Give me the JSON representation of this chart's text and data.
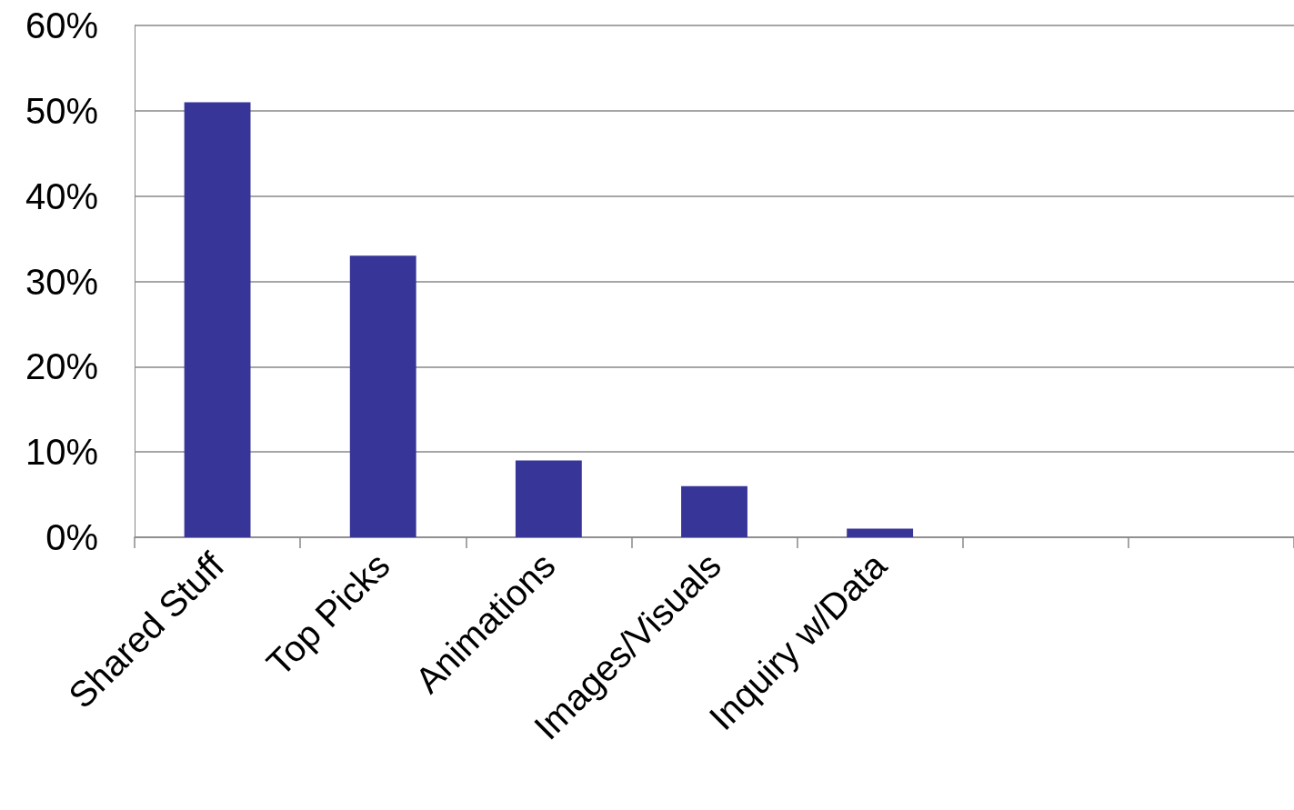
{
  "chart_data": {
    "type": "bar",
    "categories": [
      "Shared Stuff",
      "Top Picks",
      "Animations",
      "Images/Visuals",
      "Inquiry w/Data",
      null,
      null
    ],
    "values": [
      51,
      33,
      9,
      6,
      1,
      null,
      null
    ],
    "color": "#373597",
    "ylim": [
      0,
      60
    ],
    "yticks": [
      {
        "value": 0,
        "label": "0%"
      },
      {
        "value": 10,
        "label": "10%"
      },
      {
        "value": 20,
        "label": "20%"
      },
      {
        "value": 30,
        "label": "30%"
      },
      {
        "value": 40,
        "label": "40%"
      },
      {
        "value": 50,
        "label": "50%"
      },
      {
        "value": 60,
        "label": "60%"
      }
    ],
    "grid": "y"
  }
}
